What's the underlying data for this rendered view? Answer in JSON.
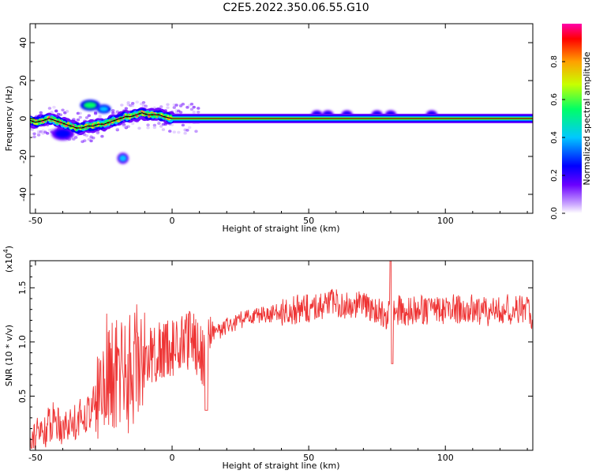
{
  "page": {
    "title": "C2E5.2022.350.06.55.G10"
  },
  "chart_data": [
    {
      "type": "heatmap",
      "title": "C2E5.2022.350.06.55.G10",
      "xlabel": "Height of straight line (km)",
      "ylabel": "Frequency (Hz)",
      "xlim": [
        -52,
        132
      ],
      "ylim": [
        -50,
        50
      ],
      "xticks": [
        -50,
        0,
        50,
        100
      ],
      "yticks": [
        -40,
        -20,
        0,
        20,
        40
      ],
      "colorbar": {
        "label": "Normalized spectral amplitude",
        "range": [
          0,
          1
        ],
        "ticks": [
          0.0,
          0.2,
          0.4,
          0.6,
          0.8
        ],
        "tick_labels": [
          "0.0",
          "0.2",
          "0.4",
          "0.6",
          "0.8"
        ],
        "colormap": [
          "#ffffff",
          "#c9a3ff",
          "#6a00ff",
          "#0000ff",
          "#00c8ff",
          "#00ff66",
          "#c8ff00",
          "#ffa000",
          "#ff0000",
          "#ff00aa"
        ]
      },
      "ridge": {
        "x": [
          -52,
          -50,
          -47,
          -45,
          -43,
          -41,
          -39,
          -37,
          -35,
          -33,
          -31,
          -29,
          -27,
          -25,
          -23,
          -21,
          -19,
          -17,
          -15,
          -13,
          -11,
          -9,
          -7,
          -5,
          -3,
          0,
          10,
          20,
          40,
          60,
          80,
          100,
          120,
          132
        ],
        "y": [
          -1,
          -2,
          -1,
          0,
          -1,
          -2,
          -3,
          -4,
          -5,
          -5,
          -4,
          -4,
          -3,
          -3,
          -2,
          -1,
          0,
          1,
          1,
          2,
          3,
          2,
          2,
          2,
          1,
          0,
          0,
          0,
          0,
          0,
          0,
          0,
          0,
          0
        ]
      },
      "blobs": [
        {
          "x": -30,
          "y": 7,
          "rx": 3.5,
          "ry": 2.5,
          "level": 0.45
        },
        {
          "x": -25,
          "y": 5,
          "rx": 2.5,
          "ry": 2,
          "level": 0.35
        },
        {
          "x": -18,
          "y": -21,
          "rx": 2,
          "ry": 2.5,
          "level": 0.3
        },
        {
          "x": -40,
          "y": -8,
          "rx": 4,
          "ry": 3,
          "level": 0.2
        },
        {
          "x": 53,
          "y": 2,
          "rx": 2,
          "ry": 2,
          "level": 0.25
        },
        {
          "x": 57,
          "y": 2,
          "rx": 2,
          "ry": 2,
          "level": 0.25
        },
        {
          "x": 64,
          "y": 2,
          "rx": 2,
          "ry": 2,
          "level": 0.25
        },
        {
          "x": 75,
          "y": 2,
          "rx": 2,
          "ry": 2,
          "level": 0.25
        },
        {
          "x": 80,
          "y": 2,
          "rx": 2,
          "ry": 2,
          "level": 0.25
        },
        {
          "x": 95,
          "y": 2,
          "rx": 2,
          "ry": 2,
          "level": 0.25
        }
      ]
    },
    {
      "type": "line",
      "xlabel": "Height of straight line (km)",
      "ylabel": "SNR (10 * v/v)",
      "scale_label": "(x10",
      "scale_exp": "4",
      "scale_close": ")",
      "xlim": [
        -52,
        132
      ],
      "ylim": [
        0,
        1.75
      ],
      "xticks": [
        -50,
        0,
        50,
        100
      ],
      "yticks": [
        0.5,
        1.0,
        1.5
      ],
      "ytick_labels": [
        "0.5",
        "1.0",
        "1.5"
      ],
      "color": "#ee3333",
      "series": [
        {
          "x": [
            -52,
            -49,
            -46,
            -43,
            -40,
            -37,
            -34,
            -31,
            -28,
            -26,
            -24,
            -22,
            -20,
            -18,
            -16,
            -14,
            -12,
            -10,
            -8,
            -6,
            -4,
            -2,
            0,
            2,
            4,
            6,
            8,
            10,
            12,
            14,
            16,
            18,
            20,
            22,
            25,
            30,
            35,
            40,
            45,
            50,
            55,
            60,
            65,
            70,
            75,
            78,
            80,
            82,
            85,
            90,
            95,
            100,
            105,
            110,
            115,
            120,
            125,
            130,
            132
          ],
          "y": [
            0.1,
            0.15,
            0.2,
            0.3,
            0.22,
            0.25,
            0.3,
            0.35,
            0.45,
            0.6,
            0.75,
            0.65,
            0.7,
            0.8,
            0.7,
            0.8,
            0.85,
            0.9,
            0.85,
            0.9,
            0.9,
            0.95,
            0.95,
            0.95,
            1.0,
            1.0,
            1.05,
            0.9,
            0.85,
            1.05,
            1.1,
            1.1,
            1.15,
            1.15,
            1.2,
            1.25,
            1.25,
            1.28,
            1.3,
            1.3,
            1.35,
            1.35,
            1.35,
            1.33,
            1.3,
            1.2,
            1.3,
            1.3,
            1.28,
            1.3,
            1.3,
            1.3,
            1.3,
            1.3,
            1.28,
            1.3,
            1.3,
            1.3,
            1.25
          ]
        }
      ]
    }
  ]
}
